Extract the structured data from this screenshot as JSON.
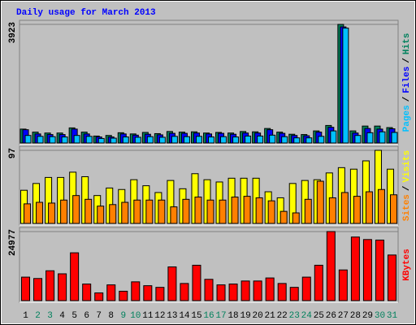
{
  "chart_data": [
    {
      "type": "bar",
      "title": "Daily usage for March 2013",
      "legend_separator": "/",
      "ylim": [
        0,
        3923
      ],
      "yticks": [
        3923
      ],
      "series": [
        {
          "name": "Hits",
          "color": "#00805c",
          "values": [
            460,
            360,
            330,
            330,
            500,
            360,
            230,
            250,
            340,
            300,
            350,
            310,
            380,
            360,
            370,
            330,
            350,
            330,
            380,
            370,
            480,
            360,
            290,
            280,
            400,
            580,
            3923,
            400,
            560,
            560,
            510
          ]
        },
        {
          "name": "Files",
          "color": "#0000ff",
          "values": [
            440,
            300,
            280,
            280,
            460,
            300,
            200,
            200,
            300,
            260,
            290,
            270,
            320,
            320,
            330,
            300,
            320,
            290,
            330,
            330,
            440,
            320,
            250,
            240,
            360,
            520,
            3840,
            330,
            480,
            460,
            470
          ]
        },
        {
          "name": "Pages",
          "color": "#00c0ff",
          "values": [
            250,
            220,
            210,
            200,
            250,
            220,
            150,
            160,
            200,
            190,
            210,
            190,
            220,
            210,
            220,
            200,
            210,
            200,
            230,
            230,
            260,
            210,
            170,
            170,
            220,
            400,
            3800,
            250,
            340,
            370,
            350
          ]
        }
      ]
    },
    {
      "type": "bar",
      "legend_separator": "/",
      "ylim": [
        0,
        97
      ],
      "yticks": [
        97
      ],
      "series": [
        {
          "name": "Visits",
          "color": "#ffff00",
          "values": [
            44,
            53,
            61,
            61,
            68,
            62,
            37,
            47,
            45,
            58,
            50,
            41,
            57,
            46,
            66,
            58,
            55,
            60,
            60,
            60,
            42,
            34,
            53,
            57,
            58,
            67,
            74,
            72,
            83,
            97,
            72
          ]
        },
        {
          "name": "Sites",
          "color": "#ff8000",
          "values": [
            26,
            28,
            27,
            31,
            37,
            32,
            23,
            25,
            28,
            31,
            31,
            31,
            22,
            32,
            35,
            31,
            31,
            35,
            36,
            34,
            30,
            16,
            14,
            32,
            56,
            34,
            41,
            36,
            42,
            45,
            38
          ]
        }
      ]
    },
    {
      "type": "bar",
      "ylim": [
        0,
        24977
      ],
      "yticks": [
        24977
      ],
      "categories": [
        "1",
        "2",
        "3",
        "4",
        "5",
        "6",
        "7",
        "8",
        "9",
        "10",
        "11",
        "12",
        "13",
        "14",
        "15",
        "16",
        "17",
        "18",
        "19",
        "20",
        "21",
        "22",
        "23",
        "24",
        "25",
        "26",
        "27",
        "28",
        "29",
        "30",
        "31"
      ],
      "category_colors": [
        "#000000",
        "#00805c",
        "#00805c",
        "#000000",
        "#000000",
        "#000000",
        "#000000",
        "#000000",
        "#00805c",
        "#00805c",
        "#000000",
        "#000000",
        "#000000",
        "#000000",
        "#000000",
        "#00805c",
        "#00805c",
        "#000000",
        "#000000",
        "#000000",
        "#000000",
        "#000000",
        "#00805c",
        "#00805c",
        "#000000",
        "#000000",
        "#000000",
        "#000000",
        "#000000",
        "#00805c",
        "#00805c"
      ],
      "series": [
        {
          "name": "KBytes",
          "color": "#ff0000",
          "values": [
            8500,
            8000,
            10800,
            9700,
            17300,
            6000,
            2800,
            5700,
            3400,
            6800,
            5400,
            4800,
            12200,
            6200,
            12800,
            7700,
            5700,
            6000,
            7100,
            7100,
            8200,
            6200,
            4800,
            8500,
            12800,
            24977,
            11100,
            23000,
            22100,
            21900,
            16500
          ]
        }
      ]
    }
  ]
}
